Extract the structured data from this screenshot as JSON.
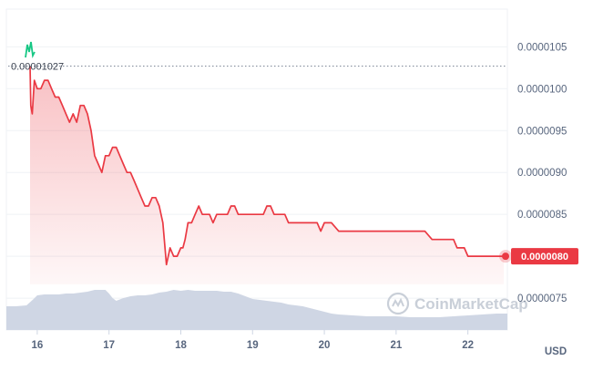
{
  "chart_data": {
    "type": "line",
    "y_ticks": [
      "0.0000105",
      "0.0000100",
      "0.0000095",
      "0.0000090",
      "0.0000085",
      "0.0000080",
      "0.0000075"
    ],
    "y_tick_values": [
      1.05e-05,
      1e-05,
      9.5e-06,
      9e-06,
      8.5e-06,
      8e-06,
      7.5e-06
    ],
    "x_ticks": [
      "16",
      "17",
      "18",
      "19",
      "20",
      "21",
      "22"
    ],
    "x_tick_values": [
      16,
      17,
      18,
      19,
      20,
      21,
      22
    ],
    "xlim": [
      15.57,
      22.55
    ],
    "ylim": [
      7.12e-06,
      1.095e-05
    ],
    "unit_label": "USD",
    "high_label": "0.00001027",
    "high_value": 1.027e-05,
    "current_label": "0.0000080",
    "current_value": 8e-06,
    "watermark": "CoinMarketCap",
    "grid": true,
    "colors": {
      "line": "#ea3943",
      "area": "#ea3943",
      "volume": "#cfd6e4",
      "grid": "#eff2f5",
      "green": "#16c784"
    },
    "series": [
      {
        "x": [
          15.9,
          15.91,
          15.93,
          15.96,
          16.0,
          16.05,
          16.1,
          16.15,
          16.2,
          16.25,
          16.3,
          16.35,
          16.4,
          16.45,
          16.5,
          16.55,
          16.6,
          16.65,
          16.7,
          16.75,
          16.8,
          16.85,
          16.9,
          16.95,
          17.0,
          17.05,
          17.1,
          17.15,
          17.2,
          17.25,
          17.3,
          17.35,
          17.4,
          17.45,
          17.5,
          17.55,
          17.6,
          17.65,
          17.7,
          17.75,
          17.8,
          17.85,
          17.9,
          17.95,
          18.0,
          18.03,
          18.06,
          18.08,
          18.1,
          18.15,
          18.2,
          18.25,
          18.3,
          18.35,
          18.4,
          18.45,
          18.5,
          18.55,
          18.6,
          18.65,
          18.7,
          18.75,
          18.8,
          18.85,
          18.9,
          18.95,
          19.0,
          19.05,
          19.1,
          19.15,
          19.2,
          19.25,
          19.3,
          19.35,
          19.4,
          19.45,
          19.5,
          19.55,
          19.6,
          19.65,
          19.7,
          19.75,
          19.8,
          19.85,
          19.9,
          19.95,
          20.0,
          20.1,
          20.2,
          20.3,
          20.4,
          20.5,
          20.6,
          20.7,
          20.8,
          20.9,
          21.0,
          21.1,
          21.2,
          21.3,
          21.4,
          21.5,
          21.6,
          21.7,
          21.75,
          21.8,
          21.85,
          21.9,
          21.95,
          22.0,
          22.05,
          22.1,
          22.15,
          22.2,
          22.25,
          22.3,
          22.35,
          22.4,
          22.45,
          22.5
        ],
        "y": [
          1.027e-05,
          9.8e-06,
          9.7e-06,
          1.01e-05,
          1e-05,
          1e-05,
          1.01e-05,
          1.01e-05,
          1e-05,
          9.9e-06,
          9.9e-06,
          9.8e-06,
          9.7e-06,
          9.6e-06,
          9.7e-06,
          9.6e-06,
          9.8e-06,
          9.8e-06,
          9.7e-06,
          9.5e-06,
          9.2e-06,
          9.1e-06,
          9e-06,
          9.2e-06,
          9.2e-06,
          9.3e-06,
          9.3e-06,
          9.2e-06,
          9.1e-06,
          9e-06,
          9e-06,
          8.9e-06,
          8.8e-06,
          8.7e-06,
          8.6e-06,
          8.6e-06,
          8.7e-06,
          8.7e-06,
          8.6e-06,
          8.4e-06,
          7.9e-06,
          8.1e-06,
          8e-06,
          8e-06,
          8.1e-06,
          8.1e-06,
          8.2e-06,
          8.3e-06,
          8.4e-06,
          8.4e-06,
          8.5e-06,
          8.6e-06,
          8.5e-06,
          8.5e-06,
          8.5e-06,
          8.4e-06,
          8.5e-06,
          8.5e-06,
          8.5e-06,
          8.5e-06,
          8.6e-06,
          8.6e-06,
          8.5e-06,
          8.5e-06,
          8.5e-06,
          8.5e-06,
          8.5e-06,
          8.5e-06,
          8.5e-06,
          8.5e-06,
          8.6e-06,
          8.6e-06,
          8.5e-06,
          8.5e-06,
          8.5e-06,
          8.5e-06,
          8.4e-06,
          8.4e-06,
          8.4e-06,
          8.4e-06,
          8.4e-06,
          8.4e-06,
          8.4e-06,
          8.4e-06,
          8.4e-06,
          8.3e-06,
          8.4e-06,
          8.4e-06,
          8.3e-06,
          8.3e-06,
          8.3e-06,
          8.3e-06,
          8.3e-06,
          8.3e-06,
          8.3e-06,
          8.3e-06,
          8.3e-06,
          8.3e-06,
          8.3e-06,
          8.3e-06,
          8.3e-06,
          8.2e-06,
          8.2e-06,
          8.2e-06,
          8.2e-06,
          8.2e-06,
          8.1e-06,
          8.1e-06,
          8.1e-06,
          8e-06,
          8e-06,
          8e-06,
          8e-06,
          8e-06,
          8e-06,
          8e-06,
          8e-06,
          8e-06,
          8e-06,
          8e-06
        ]
      }
    ],
    "volume": {
      "x": [
        15.57,
        15.7,
        15.85,
        15.95,
        16.0,
        16.1,
        16.2,
        16.3,
        16.4,
        16.5,
        16.6,
        16.7,
        16.8,
        16.9,
        16.95,
        17.0,
        17.05,
        17.1,
        17.2,
        17.3,
        17.4,
        17.5,
        17.6,
        17.7,
        17.8,
        17.9,
        18.0,
        18.1,
        18.2,
        18.3,
        18.4,
        18.5,
        18.6,
        18.7,
        18.8,
        18.9,
        19.0,
        19.1,
        19.2,
        19.3,
        19.4,
        19.5,
        19.6,
        19.7,
        19.8,
        19.9,
        20.0,
        20.1,
        20.2,
        20.4,
        20.6,
        20.8,
        21.0,
        21.2,
        21.4,
        21.6,
        21.8,
        22.0,
        22.2,
        22.4,
        22.55
      ],
      "v": [
        26,
        26,
        27,
        34,
        38,
        39,
        39,
        39,
        40,
        40,
        41,
        42,
        44,
        44,
        44,
        40,
        35,
        32,
        35,
        37,
        38,
        38,
        39,
        41,
        42,
        44,
        43,
        44,
        43,
        43,
        43,
        43,
        42,
        42,
        40,
        37,
        34,
        33,
        32,
        31,
        30,
        28,
        27,
        26,
        24,
        22,
        20,
        18,
        17,
        16,
        15,
        15,
        15,
        14,
        14,
        14,
        15,
        16,
        17,
        18,
        18
      ]
    }
  }
}
